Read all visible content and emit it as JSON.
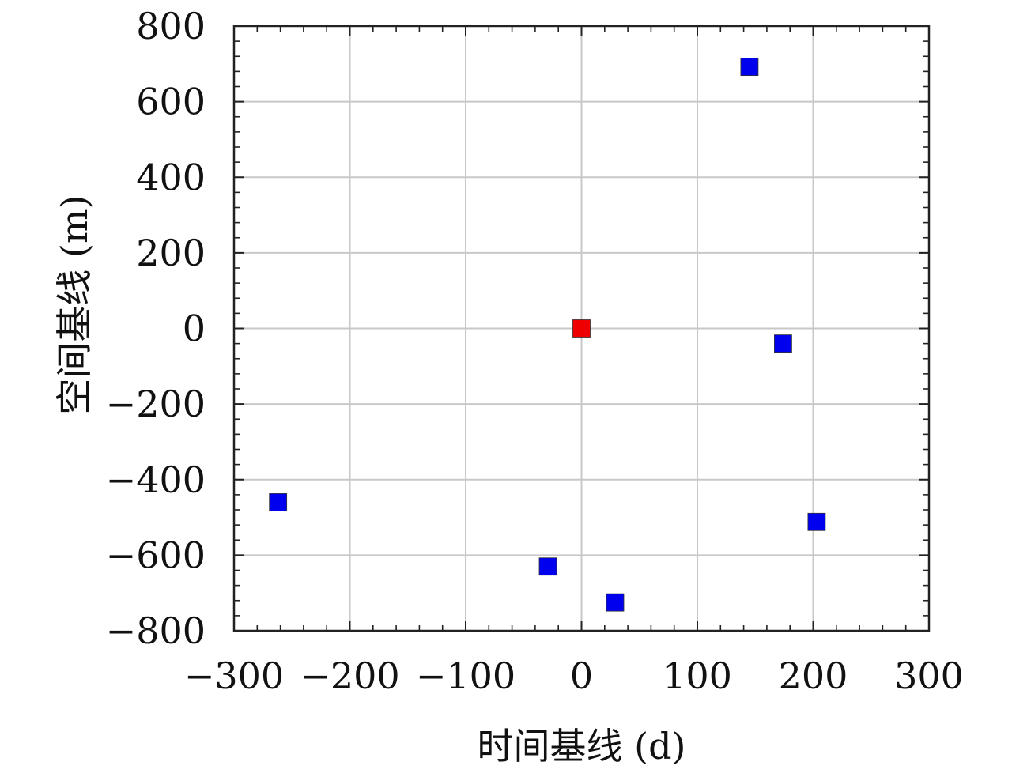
{
  "chart_data": {
    "type": "scatter",
    "xlabel": "时间基线 (d)",
    "ylabel": "空间基线 (m)",
    "xlim": [
      -300,
      300
    ],
    "ylim": [
      -800,
      800
    ],
    "xticks": [
      -300,
      -200,
      -100,
      0,
      100,
      200,
      300
    ],
    "xtick_labels": [
      "−300",
      "−200",
      "−100",
      "0",
      "100",
      "200",
      "300"
    ],
    "yticks": [
      800,
      600,
      400,
      200,
      0,
      -200,
      -400,
      -600,
      -800
    ],
    "ytick_labels": [
      "800",
      "600",
      "400",
      "200",
      "0",
      "−200",
      "−400",
      "−600",
      "−800"
    ],
    "grid": true,
    "marker": "square",
    "colors": {
      "reference": "#ee0000",
      "secondary": "#0000ee"
    },
    "points": [
      {
        "x": 0,
        "y": 0,
        "role": "reference"
      },
      {
        "x": -262,
        "y": -460,
        "role": "secondary"
      },
      {
        "x": -29,
        "y": -630,
        "role": "secondary"
      },
      {
        "x": 29,
        "y": -725,
        "role": "secondary"
      },
      {
        "x": 145,
        "y": 692,
        "role": "secondary"
      },
      {
        "x": 174,
        "y": -40,
        "role": "secondary"
      },
      {
        "x": 203,
        "y": -512,
        "role": "secondary"
      }
    ]
  }
}
